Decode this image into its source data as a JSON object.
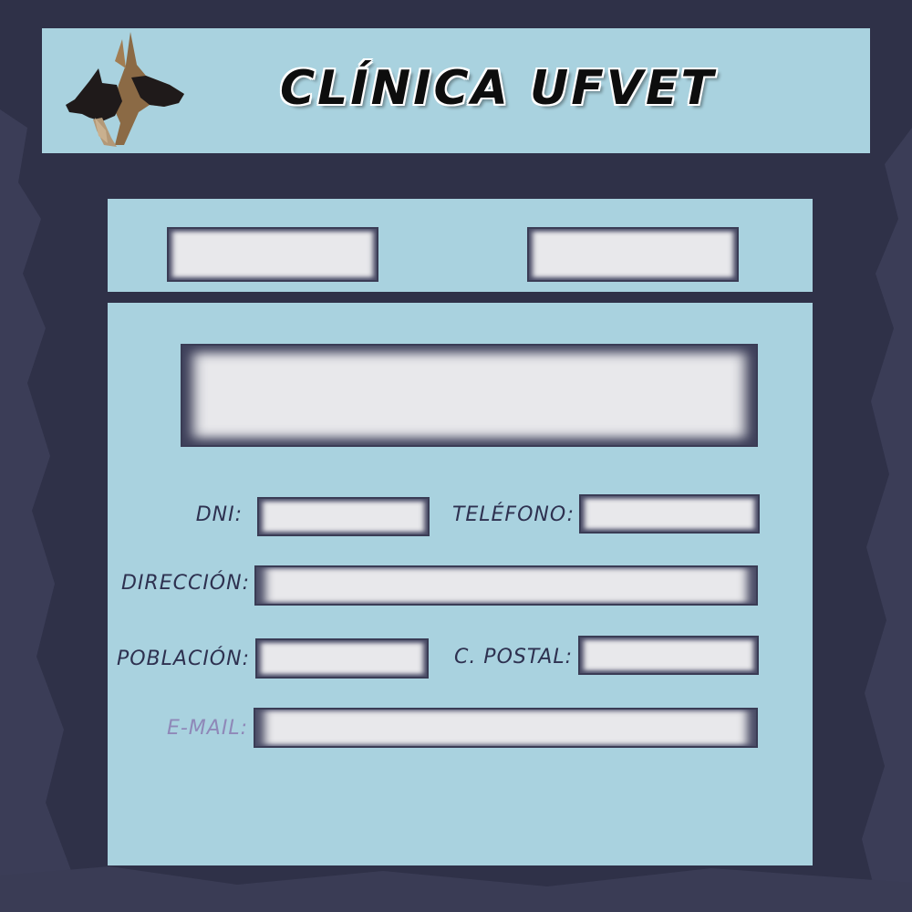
{
  "header": {
    "title": "CLÍNICA UFVET",
    "logo_icon": "dog-and-cat-heads-icon"
  },
  "top_panel": {
    "fields": [
      {
        "name": "top-field-left",
        "value": ""
      },
      {
        "name": "top-field-right",
        "value": ""
      }
    ]
  },
  "form": {
    "big_field_value": "",
    "dni_label": "DNI:",
    "dni_value": "",
    "telefono_label": "TELÉFONO:",
    "telefono_value": "",
    "direccion_label": "DIRECCIÓN:",
    "direccion_value": "",
    "poblacion_label": "POBLACIÓN:",
    "poblacion_value": "",
    "cpostal_label": "C. POSTAL:",
    "cpostal_value": "",
    "email_label": "E-MAIL:",
    "email_value": ""
  },
  "colors": {
    "background": "#2f3148",
    "panel": "#a9d2df",
    "field": "#e8e8eb",
    "label_text": "#2e3150",
    "email_label_text": "#8f88b8"
  }
}
